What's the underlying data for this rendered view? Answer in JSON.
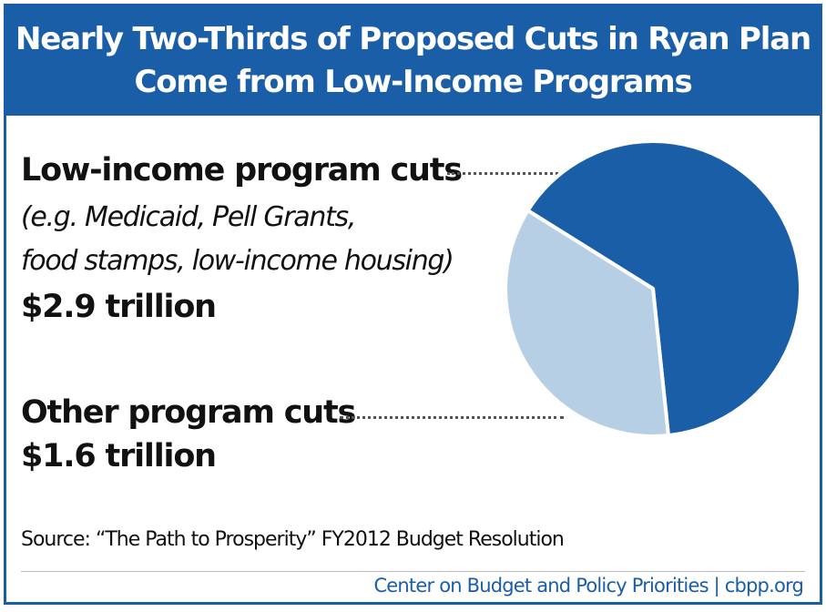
{
  "title_lines": [
    "Nearly Two-Thirds of Proposed Cuts in Ryan Plan",
    "Come from Low-Income Programs"
  ],
  "labels": {
    "low_income": {
      "heading": "Low-income program cuts",
      "example_line1": "(e.g. Medicaid, Pell Grants,",
      "example_line2": "food stamps, low-income housing)",
      "value": "$2.9 trillion"
    },
    "other": {
      "heading": "Other program cuts",
      "value": "$1.6 trillion"
    }
  },
  "source": "Source: “The Path to Prosperity” FY2012 Budget Resolution",
  "credit": "Center on Budget and Policy Priorities | cbpp.org",
  "colors": {
    "brand_blue": "#1a5ea8",
    "light_blue": "#b7cfe5",
    "text": "#111111",
    "rule": "#b9b9b9"
  },
  "chart_data": {
    "type": "pie",
    "title": "Nearly Two-Thirds of Proposed Cuts in Ryan Plan Come from Low-Income Programs",
    "unit": "trillion",
    "slices": [
      {
        "label": "Low-income program cuts",
        "value": 2.9,
        "color": "#1a5ea8"
      },
      {
        "label": "Other program cuts",
        "value": 1.6,
        "color": "#b7cfe5"
      }
    ]
  }
}
